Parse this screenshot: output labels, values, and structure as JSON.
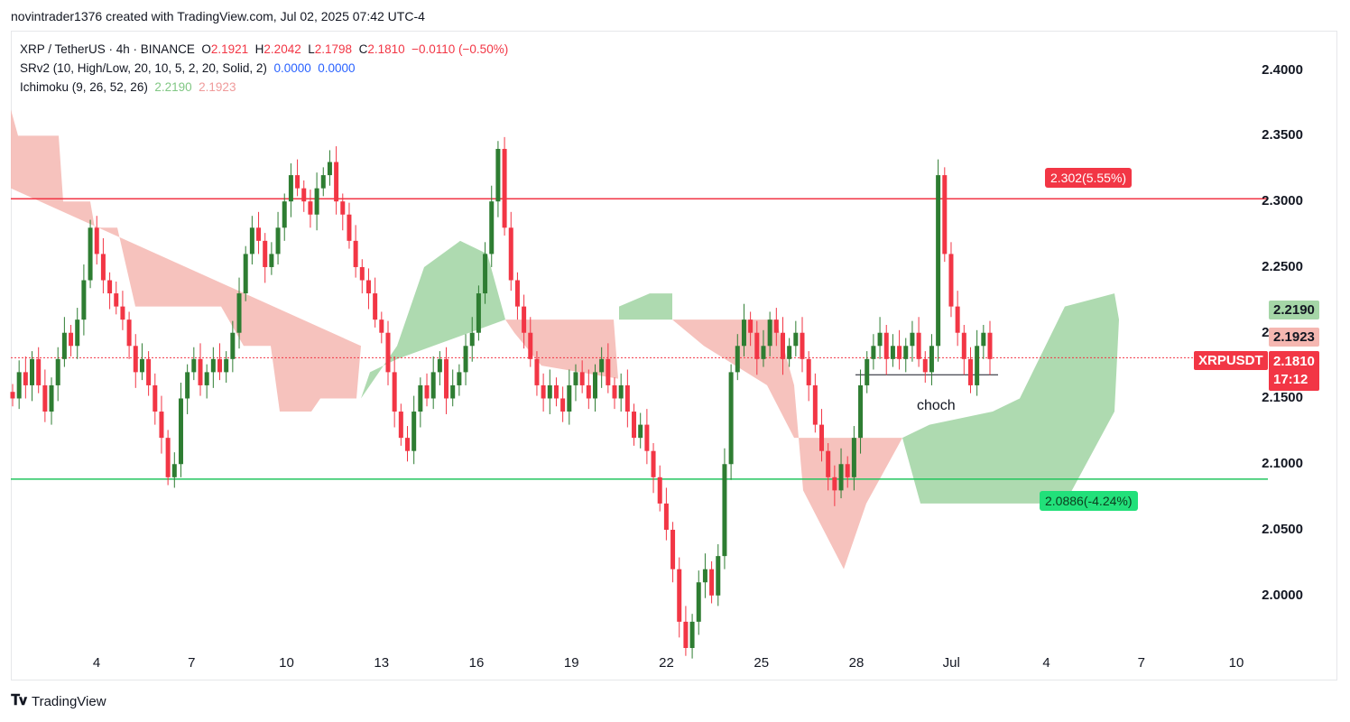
{
  "header": {
    "text": "novintrader1376 created with TradingView.com, Jul 02, 2025 07:42 UTC-4"
  },
  "legend": {
    "symbol": "XRP / TetherUS · 4h · BINANCE",
    "o_label": "O",
    "o": "2.1921",
    "h_label": "H",
    "h": "2.2042",
    "l_label": "L",
    "l": "2.1798",
    "c_label": "C",
    "c": "2.1810",
    "chg": "−0.0110 (−0.50%)",
    "srv2": "SRv2 (10, High/Low, 20, 10, 5, 2, 20, Solid, 2)",
    "srv2_v1": "0.0000",
    "srv2_v2": "0.0000",
    "ichimoku": "Ichimoku (9, 26, 52, 26)",
    "ichimoku_v1": "2.2190",
    "ichimoku_v2": "2.1923"
  },
  "annotations": {
    "upper_target": "2.302(5.55%)",
    "lower_target": "2.0886(-4.24%)",
    "choch": "choch"
  },
  "badges": {
    "span_a": "2.2190",
    "span_b": "2.1923",
    "symbol": "XRPUSDT",
    "price": "2.1810",
    "timer": "17:12"
  },
  "footer": {
    "brand": "TradingView"
  },
  "colors": {
    "up": "#2e7d32",
    "down": "#f23645",
    "resistance": "#f23645",
    "support": "#22c55e",
    "cloud_bull": "#a5d6a7",
    "cloud_bear": "#f5b7b1"
  },
  "chart_data": {
    "type": "candlestick",
    "title": "XRP / TetherUS · 4h · BINANCE",
    "ylim": [
      1.96,
      2.43
    ],
    "y_ticks": [
      "2.4000",
      "2.3500",
      "2.3000",
      "2.2500",
      "2.2000",
      "2.1500",
      "2.1000",
      "2.0500",
      "2.0000"
    ],
    "x_ticks": [
      "4",
      "7",
      "10",
      "13",
      "16",
      "19",
      "22",
      "25",
      "28",
      "Jul",
      "4",
      "7",
      "10"
    ],
    "last_price": 2.181,
    "horizontal_lines": [
      {
        "label": "2.302(5.55%)",
        "value": 2.302
      },
      {
        "label": "2.0886(-4.24%)",
        "value": 2.0886
      }
    ],
    "choch_level": 2.168,
    "closes": [
      2.15,
      2.17,
      2.16,
      2.18,
      2.16,
      2.14,
      2.16,
      2.18,
      2.2,
      2.19,
      2.21,
      2.24,
      2.28,
      2.26,
      2.24,
      2.23,
      2.22,
      2.21,
      2.19,
      2.17,
      2.18,
      2.16,
      2.14,
      2.12,
      2.09,
      2.1,
      2.15,
      2.17,
      2.18,
      2.16,
      2.17,
      2.18,
      2.17,
      2.18,
      2.2,
      2.23,
      2.26,
      2.28,
      2.27,
      2.25,
      2.26,
      2.28,
      2.3,
      2.32,
      2.31,
      2.3,
      2.29,
      2.31,
      2.32,
      2.33,
      2.3,
      2.29,
      2.27,
      2.25,
      2.24,
      2.23,
      2.21,
      2.2,
      2.17,
      2.14,
      2.12,
      2.11,
      2.14,
      2.16,
      2.15,
      2.17,
      2.18,
      2.15,
      2.16,
      2.17,
      2.19,
      2.2,
      2.23,
      2.26,
      2.3,
      2.34,
      2.28,
      2.24,
      2.22,
      2.2,
      2.18,
      2.16,
      2.15,
      2.16,
      2.15,
      2.14,
      2.16,
      2.17,
      2.16,
      2.15,
      2.17,
      2.18,
      2.16,
      2.15,
      2.16,
      2.14,
      2.12,
      2.13,
      2.11,
      2.09,
      2.07,
      2.05,
      2.02,
      1.98,
      1.96,
      1.98,
      2.01,
      2.02,
      2.0,
      2.03,
      2.1,
      2.17,
      2.19,
      2.21,
      2.2,
      2.18,
      2.19,
      2.21,
      2.2,
      2.18,
      2.19,
      2.2,
      2.18,
      2.16,
      2.13,
      2.11,
      2.09,
      2.08,
      2.1,
      2.09,
      2.12,
      2.16,
      2.18,
      2.19,
      2.2,
      2.18,
      2.19,
      2.18,
      2.19,
      2.2,
      2.18,
      2.17,
      2.19,
      2.32,
      2.26,
      2.22,
      2.2,
      2.18,
      2.16,
      2.19,
      2.2,
      2.18
    ]
  }
}
